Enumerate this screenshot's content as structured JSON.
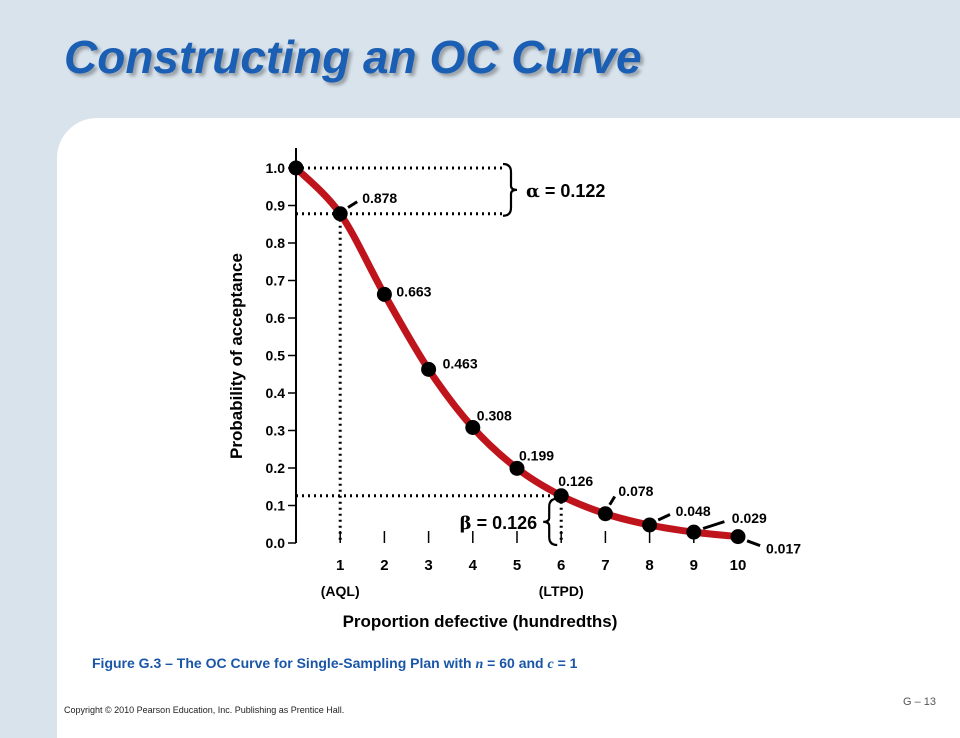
{
  "slide": {
    "title": "Constructing an OC Curve",
    "caption_prefix": "Figure G.3 – The OC Curve for Single-Sampling Plan with ",
    "caption_n_symbol": "n",
    "caption_mid": " = 60 and ",
    "caption_c_symbol": "c",
    "caption_suffix": " = 1",
    "copyright": "Copyright © 2010 Pearson Education, Inc. Publishing as Prentice Hall.",
    "slide_number": "G – 13"
  },
  "colors": {
    "title": "#1a5fb4",
    "curve": "#c0141c",
    "points": "#000000",
    "caption": "#1a56a8",
    "background": "#d9e3ec"
  },
  "chart_data": {
    "type": "line",
    "xlabel": "Proportion defective (hundredths)",
    "ylabel": "Probability of acceptance",
    "xlim": [
      0,
      10
    ],
    "ylim": [
      0,
      1
    ],
    "x_ticks": [
      "1",
      "2",
      "3",
      "4",
      "5",
      "6",
      "7",
      "8",
      "9",
      "10"
    ],
    "y_ticks": [
      "0.0",
      "0.1",
      "0.2",
      "0.3",
      "0.4",
      "0.5",
      "0.6",
      "0.7",
      "0.8",
      "0.9",
      "1.0"
    ],
    "x_sublabels": [
      {
        "x": 1,
        "text": "(AQL)"
      },
      {
        "x": 6,
        "text": "(LTPD)"
      }
    ],
    "series": [
      {
        "x": [
          0,
          1,
          2,
          3,
          4,
          5,
          6,
          7,
          8,
          9,
          10
        ],
        "y": [
          1.0,
          0.878,
          0.663,
          0.463,
          0.308,
          0.199,
          0.126,
          0.078,
          0.048,
          0.029,
          0.017
        ]
      }
    ],
    "point_labels": [
      {
        "x": 1,
        "text": "0.878"
      },
      {
        "x": 2,
        "text": "0.663"
      },
      {
        "x": 3,
        "text": "0.463"
      },
      {
        "x": 4,
        "text": "0.308"
      },
      {
        "x": 5,
        "text": "0.199"
      },
      {
        "x": 6,
        "text": "0.126"
      },
      {
        "x": 7,
        "text": "0.078"
      },
      {
        "x": 8,
        "text": "0.048"
      },
      {
        "x": 9,
        "text": "0.029"
      },
      {
        "x": 10,
        "text": "0.017"
      }
    ],
    "annotations": {
      "alpha": {
        "symbol": "α",
        "text": " = 0.122",
        "between": [
          1.0,
          0.878
        ]
      },
      "beta": {
        "symbol": "β",
        "text": " = 0.126",
        "between": [
          0.126,
          0.0
        ]
      }
    },
    "grid": false
  }
}
